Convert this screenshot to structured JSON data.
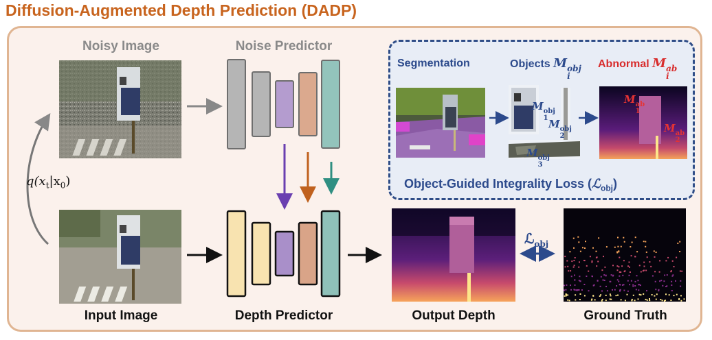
{
  "title": "Diffusion-Augmented Depth Prediction (DADP)",
  "labels": {
    "noisy_image": "Noisy Image",
    "noise_predictor": "Noise Predictor",
    "input_image": "Input Image",
    "depth_predictor": "Depth Predictor",
    "output_depth": "Output Depth",
    "ground_truth": "Ground Truth",
    "q_base": "q(x",
    "q_t": "t",
    "q_mid": "|x",
    "q_zero": "0",
    "q_end": ")"
  },
  "box": {
    "segmentation": "Segmentation",
    "objects": "Objects",
    "objects_sym": "M",
    "objects_sup": "obj",
    "objects_sub": "i",
    "abnormal": "Abnormal",
    "abnormal_sym": "M",
    "abnormal_sup": "ab",
    "abnormal_sub": "i",
    "loss_text": "Object-Guided Integrality Loss (",
    "loss_sym": "ℒ",
    "loss_sub": "obj",
    "loss_end": ")",
    "m1_obj": "M",
    "m1_sup": "obj",
    "m1_sub": "1",
    "m2_obj": "M",
    "m2_sup": "obj",
    "m2_sub": "2",
    "m3_obj": "M",
    "m3_sup": "obj",
    "m3_sub": "3",
    "m1_ab": "M",
    "m1_ab_sup": "ab",
    "m1_ab_sub": "1",
    "m2_ab": "M",
    "m2_ab_sup": "ab",
    "m2_ab_sub": "2"
  },
  "loss_arrow": {
    "sym": "ℒ",
    "sub": "obj"
  },
  "colors": {
    "title": "#c8641e",
    "panel_border": "#e0b592",
    "panel_bg": "#fbf1ec",
    "dashed_border": "#2f4d87",
    "grey_block": "#b5b5b5",
    "yellow_block": "#f8e3b0",
    "purple_block": "#a98fc9",
    "orange_block": "#d9a488",
    "teal_block": "#8fc1b9",
    "purple_arrow": "#6a3fb0",
    "orange_arrow": "#c0611e",
    "teal_arrow": "#2f8f82"
  }
}
